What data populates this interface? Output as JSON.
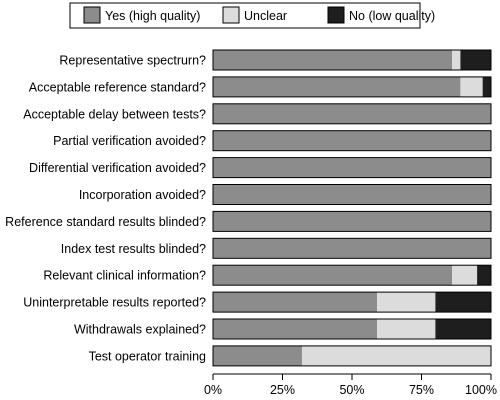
{
  "chart_data": {
    "type": "bar",
    "orientation": "horizontal",
    "stacked": true,
    "categories": [
      "Representative spectrurn?",
      "Acceptable reference standard?",
      "Acceptable delay between tests?",
      "Partial verification avoided?",
      "Differential verification avoided?",
      "Incorporation avoided?",
      "Reference standard results blinded?",
      "Index test results blinded?",
      "Relevant clinical information?",
      "Uninterpretable results reported?",
      "Withdrawals explained?",
      "Test operator training"
    ],
    "series": [
      {
        "name": "Yes (high quality)",
        "color": "#8c8c8c",
        "values": [
          86,
          89,
          100,
          100,
          100,
          100,
          100,
          100,
          86,
          59,
          59,
          32
        ]
      },
      {
        "name": "Unclear",
        "color": "#dcdcdc",
        "values": [
          3,
          8,
          0,
          0,
          0,
          0,
          0,
          0,
          9,
          21,
          21,
          68
        ]
      },
      {
        "name": "No (low quality)",
        "color": "#1e1e1e",
        "values": [
          11,
          3,
          0,
          0,
          0,
          0,
          0,
          0,
          5,
          20,
          20,
          0
        ]
      }
    ],
    "xlim": [
      0,
      100
    ],
    "xticks": [
      "0%",
      "25%",
      "50%",
      "75%",
      "100%"
    ],
    "legend_position": "top",
    "grid": false
  }
}
